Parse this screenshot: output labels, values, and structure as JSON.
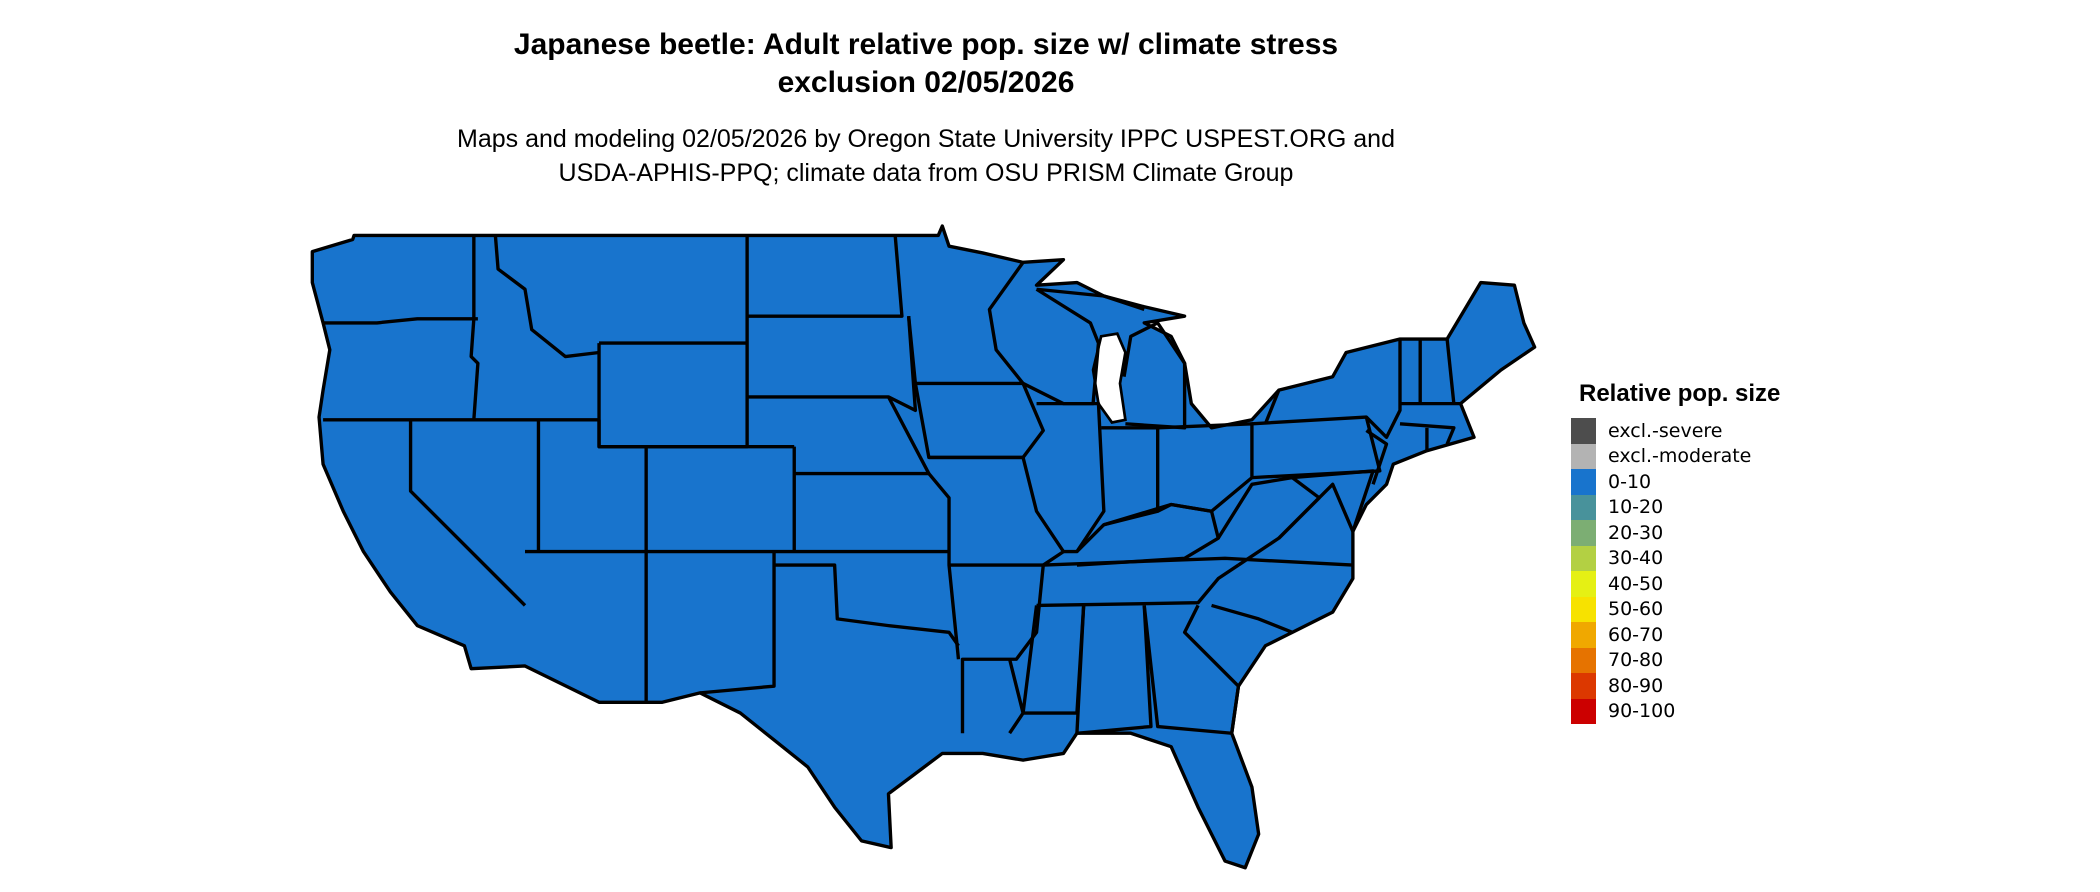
{
  "title": {
    "line1": "Japanese beetle: Adult relative pop. size w/ climate stress",
    "line2": "exclusion 02/05/2026"
  },
  "subtitle": {
    "line1": "Maps and modeling 02/05/2026 by Oregon State University IPPC USPEST.ORG and",
    "line2": "USDA-APHIS-PPQ; climate data from OSU PRISM Climate Group"
  },
  "map": {
    "region": "Contiguous United States",
    "fill_category": "0-10",
    "fill_color": "#1874CD",
    "border_color": "#000000",
    "water_color": "#FFFFFF"
  },
  "legend": {
    "title": "Relative pop. size",
    "items": [
      {
        "label": "excl.-severe",
        "color": "#4D4D4D"
      },
      {
        "label": "excl.-moderate",
        "color": "#B3B3B3"
      },
      {
        "label": "0-10",
        "color": "#1874CD"
      },
      {
        "label": "10-20",
        "color": "#48929B"
      },
      {
        "label": "20-30",
        "color": "#7CAE73"
      },
      {
        "label": "30-40",
        "color": "#B3D043"
      },
      {
        "label": "40-50",
        "color": "#E5F014"
      },
      {
        "label": "50-60",
        "color": "#F7E200"
      },
      {
        "label": "60-70",
        "color": "#F0A800"
      },
      {
        "label": "70-80",
        "color": "#E67300"
      },
      {
        "label": "80-90",
        "color": "#DC3800"
      },
      {
        "label": "90-100",
        "color": "#CC0000"
      }
    ]
  }
}
